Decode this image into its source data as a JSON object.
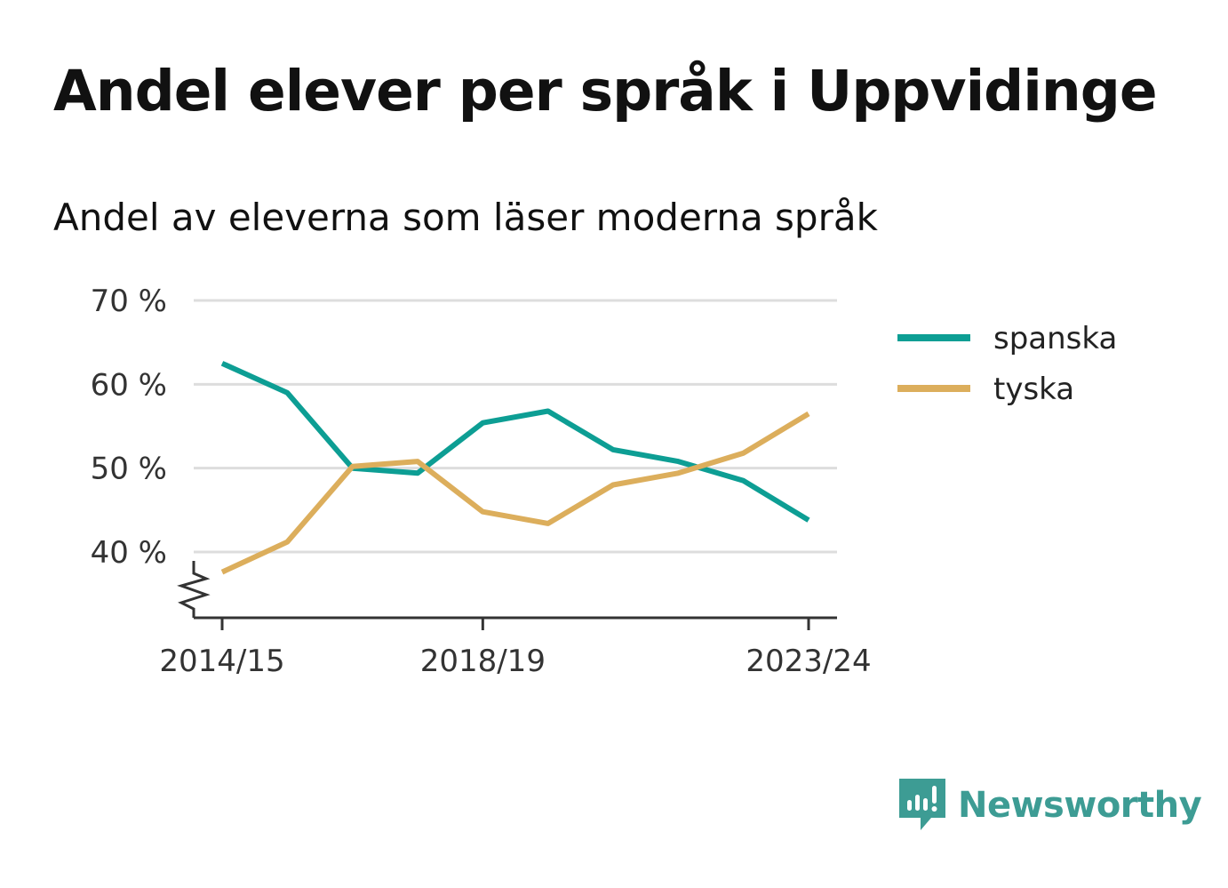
{
  "header": {
    "title": "Andel elever per språk i Uppvidinge",
    "subtitle": "Andel av eleverna som läser moderna språk"
  },
  "brand": {
    "name": "Newsworthy",
    "color": "#3d9c94",
    "icon": "newsworthy-logo-icon"
  },
  "chart_data": {
    "type": "line",
    "x": [
      "2014/15",
      "2015/16",
      "2016/17",
      "2017/18",
      "2018/19",
      "2019/20",
      "2020/21",
      "2021/22",
      "2022/23",
      "2023/24"
    ],
    "x_tick_labels": [
      "2014/15",
      "2018/19",
      "2023/24"
    ],
    "y_ticks": [
      40,
      50,
      60,
      70
    ],
    "y_tick_labels": [
      "40 %",
      "50 %",
      "60 %",
      "70 %"
    ],
    "ylim": [
      32,
      70
    ],
    "y_axis_break": true,
    "grid": true,
    "legend_position": "right",
    "series": [
      {
        "name": "spanska",
        "color": "#0d9e94",
        "values": [
          62.5,
          59.0,
          50.0,
          49.4,
          55.4,
          56.8,
          52.2,
          50.8,
          48.5,
          43.8
        ]
      },
      {
        "name": "tyska",
        "color": "#dcae5c",
        "values": [
          37.6,
          41.2,
          50.2,
          50.8,
          44.8,
          43.4,
          48.0,
          49.4,
          51.8,
          56.5
        ]
      }
    ]
  }
}
